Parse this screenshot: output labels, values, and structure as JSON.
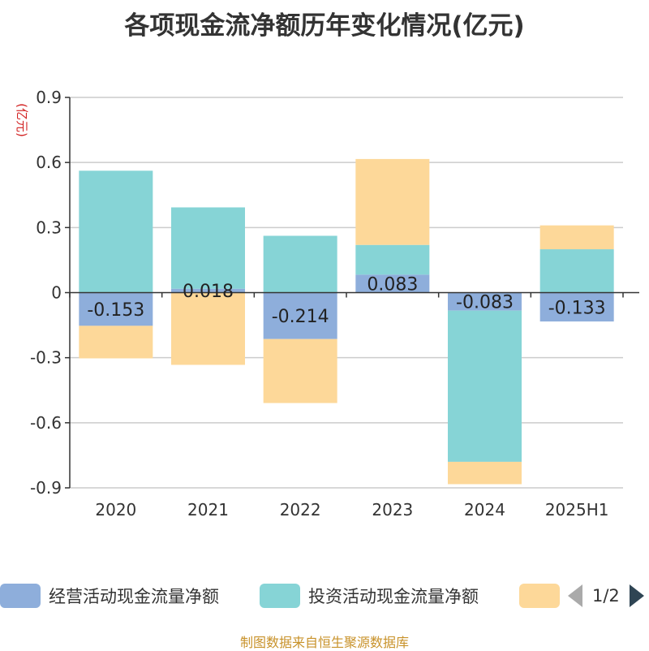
{
  "title": "各项现金流净额历年变化情况(亿元)",
  "source": "制图数据来自恒生聚源数据库",
  "legend_page": "1/2",
  "colors": {
    "operating": "#8eaedb",
    "investing": "#86d4d6",
    "financing": "#fdd899"
  },
  "chart_data": {
    "type": "bar",
    "stacked": true,
    "categories": [
      "2020",
      "2021",
      "2022",
      "2023",
      "2024",
      "2025H1"
    ],
    "ylabel": "(亿元)",
    "ylim": [
      -0.9,
      0.9
    ],
    "yticks": [
      "0.9",
      "0.6",
      "0.3",
      "0",
      "-0.3",
      "-0.6",
      "-0.9"
    ],
    "grid": true,
    "legend_position": "bottom",
    "series": [
      {
        "name": "经营活动现金流量净额",
        "color": "#8eaedb",
        "values": [
          -0.153,
          0.018,
          -0.214,
          0.083,
          -0.083,
          -0.133
        ],
        "labels": [
          "-0.153",
          "0.018",
          "-0.214",
          "0.083",
          "-0.083",
          "-0.133"
        ]
      },
      {
        "name": "投资活动现金流量净额",
        "color": "#86d4d6",
        "values": [
          0.562,
          0.375,
          0.262,
          0.137,
          -0.697,
          0.2
        ]
      },
      {
        "name": "",
        "color": "#fdd899",
        "values": [
          -0.15,
          -0.333,
          -0.295,
          0.396,
          -0.103,
          0.11
        ]
      }
    ]
  }
}
